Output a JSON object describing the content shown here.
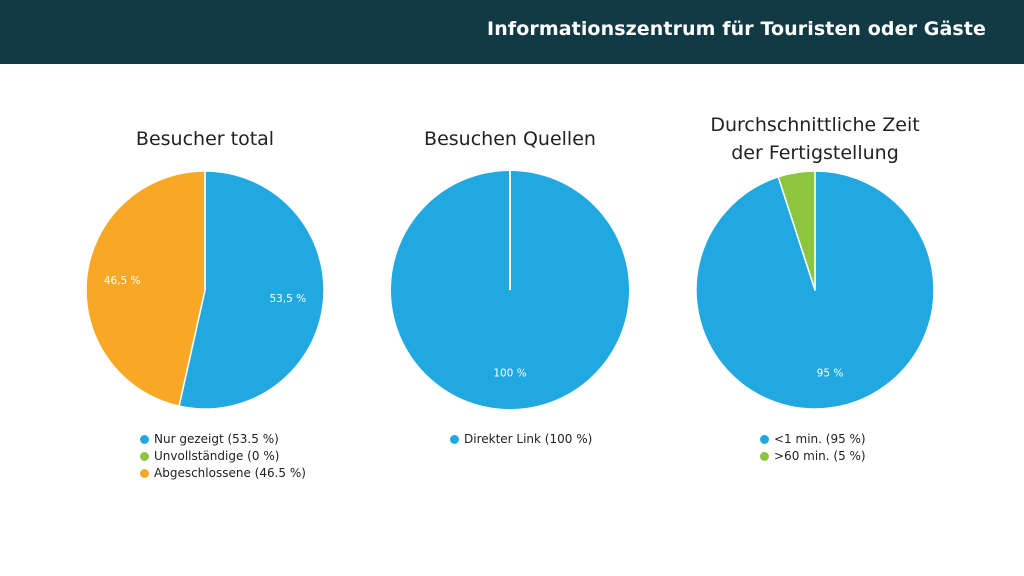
{
  "header": {
    "title": "Informationszentrum für Touristen oder Gäste"
  },
  "colors": {
    "header_bg": "#113a45",
    "blue": "#21a8e0",
    "green": "#8cc63f",
    "orange": "#f9a825"
  },
  "chart_data": [
    {
      "type": "pie",
      "title": "Besucher total",
      "slices": [
        {
          "label": "Nur gezeigt",
          "value": 53.5,
          "color": "#21a8e0",
          "data_label": "53,5 %",
          "legend": "Nur gezeigt (53.5 %)"
        },
        {
          "label": "Unvollständige",
          "value": 0,
          "color": "#8cc63f",
          "data_label": "",
          "legend": "Unvollständige (0 %)"
        },
        {
          "label": "Abgeschlossene",
          "value": 46.5,
          "color": "#f9a825",
          "data_label": "46,5 %",
          "legend": "Abgeschlossene (46.5 %)"
        }
      ]
    },
    {
      "type": "pie",
      "title": "Besuchen Quellen",
      "slices": [
        {
          "label": "Direkter Link",
          "value": 100,
          "color": "#21a8e0",
          "data_label": "100 %",
          "legend": "Direkter Link (100 %)"
        }
      ]
    },
    {
      "type": "pie",
      "title": "Durchschnittliche Zeit der Fertigstellung",
      "title_lines": [
        "Durchschnittliche Zeit",
        "der Fertigstellung"
      ],
      "slices": [
        {
          "label": "<1 min.",
          "value": 95,
          "color": "#21a8e0",
          "data_label": "95 %",
          "legend": "<1 min. (95 %)"
        },
        {
          "label": ">60 min.",
          "value": 5,
          "color": "#8cc63f",
          "data_label": "",
          "legend": ">60 min. (5 %)"
        }
      ]
    }
  ]
}
